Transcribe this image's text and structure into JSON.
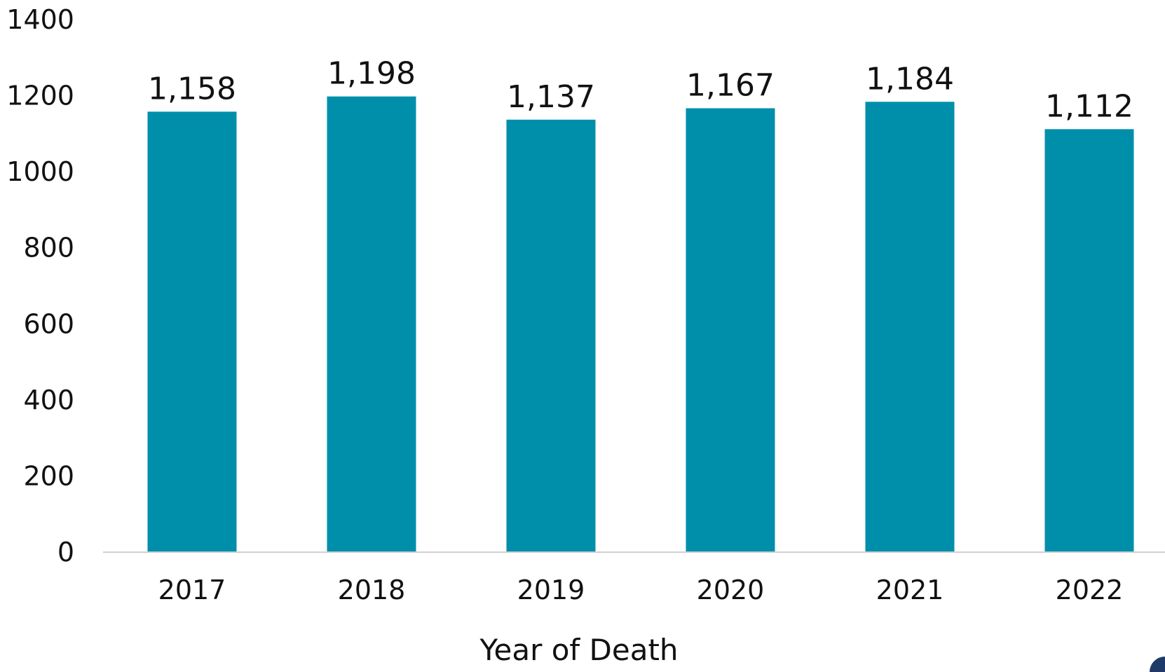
{
  "chart_data": {
    "type": "bar",
    "categories": [
      "2017",
      "2018",
      "2019",
      "2020",
      "2021",
      "2022"
    ],
    "values": [
      1158,
      1198,
      1137,
      1167,
      1184,
      1112
    ],
    "data_labels": [
      "1,158",
      "1,198",
      "1,137",
      "1,167",
      "1,184",
      "1,112"
    ],
    "title": "",
    "xlabel": "Year of Death",
    "ylabel": "",
    "ylim": [
      0,
      1400
    ],
    "yticks": [
      0,
      200,
      400,
      600,
      800,
      1000,
      1200,
      1400
    ],
    "grid": false,
    "legend": "none",
    "bar_color": "#008fab",
    "axis_color": "#d0d0d0"
  },
  "decoration": {
    "corner_color": "#1f3a68"
  }
}
